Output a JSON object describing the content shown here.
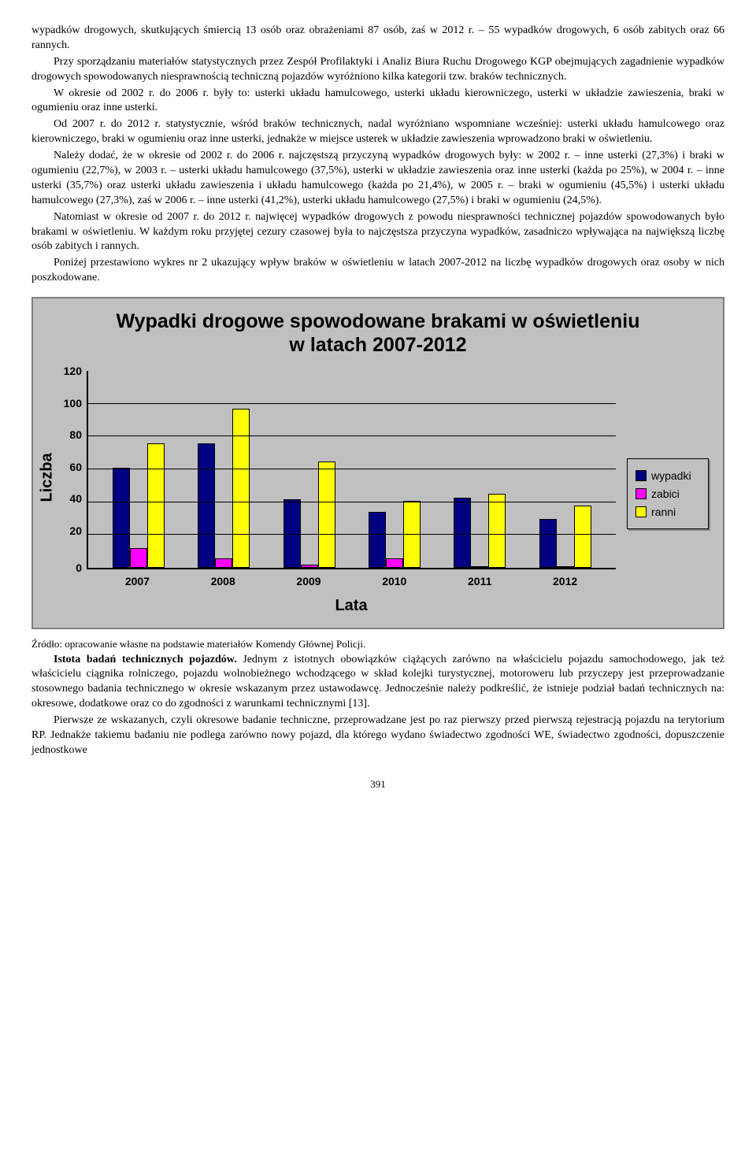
{
  "para1": "wypadków drogowych, skutkujących śmiercią 13 osób oraz obrażeniami 87 osób, zaś w 2012 r. – 55 wypadków drogowych, 6 osób zabitych oraz 66 rannych.",
  "para2": "Przy sporządzaniu materiałów statystycznych przez Zespół Profilaktyki i Analiz Biura Ruchu Drogowego KGP obejmujących zagadnienie wypadków drogowych spowodowanych niesprawnością techniczną pojazdów wyróżniono kilka kategorii tzw. braków technicznych.",
  "para3": "W okresie od 2002 r. do 2006 r. były to: usterki układu hamulcowego, usterki układu kierowniczego, usterki w układzie zawieszenia, braki w ogumieniu oraz inne usterki.",
  "para4": "Od 2007 r. do 2012 r. statystycznie, wśród braków technicznych, nadal wyróżniano wspomniane wcześniej: usterki układu hamulcowego oraz kierowniczego, braki w ogumieniu oraz inne usterki, jednakże w miejsce usterek w układzie zawieszenia wprowadzono braki w oświetleniu.",
  "para5": "Należy dodać, że w okresie od 2002 r. do 2006 r. najczęstszą przyczyną wypadków drogowych były: w 2002 r. – inne usterki (27,3%) i braki w ogumieniu (22,7%), w 2003 r. – usterki układu hamulcowego (37,5%), usterki w układzie zawieszenia oraz inne usterki (każda po 25%), w 2004 r. – inne usterki (35,7%) oraz usterki układu zawieszenia i układu hamulcowego (każda po 21,4%), w 2005 r. – braki w ogumieniu (45,5%) i usterki układu hamulcowego (27,3%), zaś w 2006 r. – inne usterki (41,2%), usterki układu hamulcowego (27,5%) i braki w ogumieniu (24,5%).",
  "para6": "Natomiast w okresie od 2007 r. do 2012 r. najwięcej wypadków drogowych z powodu niesprawności technicznej pojazdów spowodowanych było brakami w oświetleniu. W każdym roku przyjętej cezury czasowej była to najczęstsza przyczyna wypadków, zasadniczo wpływająca na największą liczbę osób zabitych i rannych.",
  "para7": "Poniżej przestawiono wykres nr 2 ukazujący wpływ braków w oświetleniu w latach 2007-2012 na liczbę wypadków drogowych oraz osoby w nich poszkodowane.",
  "chart": {
    "title_l1": "Wypadki drogowe spowodowane brakami w oświetleniu",
    "title_l2": "w latach 2007-2012",
    "ylabel": "Liczba",
    "xlabel": "Lata",
    "ylim": 120,
    "yticks": [
      "120",
      "100",
      "80",
      "60",
      "40",
      "20",
      "0"
    ],
    "categories": [
      "2007",
      "2008",
      "2009",
      "2010",
      "2011",
      "2012"
    ],
    "series": [
      {
        "name": "wypadki",
        "color": "#000080",
        "values": [
          61,
          76,
          42,
          34,
          43,
          30
        ]
      },
      {
        "name": "zabici",
        "color": "#ff00ff",
        "values": [
          12,
          6,
          2,
          6,
          1,
          1
        ]
      },
      {
        "name": "ranni",
        "color": "#ffff00",
        "values": [
          76,
          97,
          65,
          41,
          45,
          38
        ]
      }
    ],
    "background": "#c0c0c0",
    "grid_color": "#000000",
    "bar_border": "#000000"
  },
  "source": "Źródło: opracowanie własne na podstawie materiałów Komendy Głównej Policji.",
  "para8_bold": "Istota badań technicznych pojazdów.",
  "para8": " Jednym z istotnych obowiązków ciążących zarówno na właścicielu pojazdu samochodowego, jak też właścicielu ciągnika rolniczego, pojazdu wolnobieżnego wchodzącego w skład kolejki turystycznej, motoroweru lub przyczepy jest przeprowadzanie stosownego badania technicznego w okresie wskazanym przez ustawodawcę. Jednocześnie należy podkreślić, że istnieje podział badań technicznych na: okresowe, dodatkowe oraz co do zgodności z warunkami technicznymi [13].",
  "para9": "Pierwsze ze wskazanych, czyli okresowe badanie techniczne, przeprowadzane jest po raz pierwszy przed pierwszą rejestracją pojazdu na terytorium RP. Jednakże takiemu badaniu nie podlega zarówno nowy pojazd, dla którego wydano świadectwo zgodności WE, świadectwo zgodności, dopuszczenie jednostkowe",
  "page_number": "391"
}
